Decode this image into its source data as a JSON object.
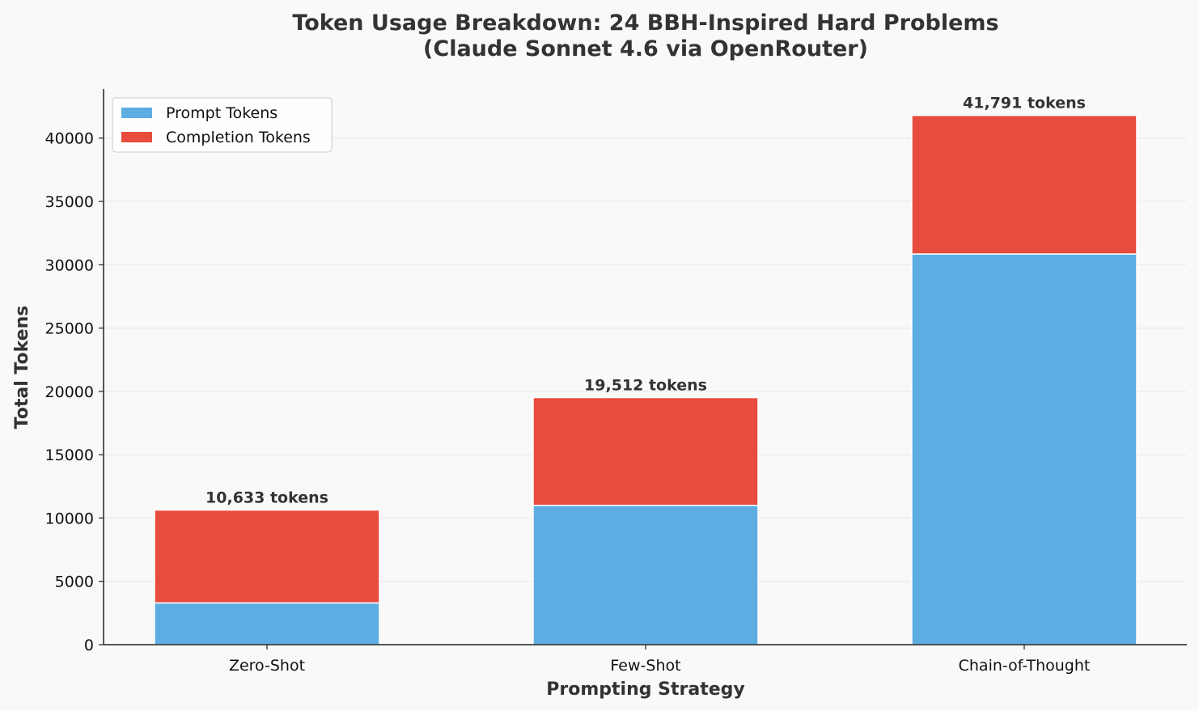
{
  "chart_data": {
    "type": "bar",
    "stacked": true,
    "title": "Token Usage Breakdown: 24 BBH-Inspired Hard Problems",
    "subtitle": "(Claude Sonnet 4.6 via OpenRouter)",
    "xlabel": "Prompting Strategy",
    "ylabel": "Total Tokens",
    "categories": [
      "Zero-Shot",
      "Few-Shot",
      "Chain-of-Thought"
    ],
    "series": [
      {
        "name": "Prompt Tokens",
        "color": "#5dade2",
        "values": [
          3300,
          11000,
          30850
        ]
      },
      {
        "name": "Completion Tokens",
        "color": "#e74c3c",
        "values": [
          7333,
          8512,
          10941
        ]
      }
    ],
    "totals": [
      10633,
      19512,
      41791
    ],
    "total_labels": [
      "10,633 tokens",
      "19,512 tokens",
      "41,791 tokens"
    ],
    "ylim": [
      0,
      43880
    ],
    "yticks": [
      0,
      5000,
      10000,
      15000,
      20000,
      25000,
      30000,
      35000,
      40000
    ],
    "grid": "horizontal",
    "legend_position": "top-left"
  }
}
